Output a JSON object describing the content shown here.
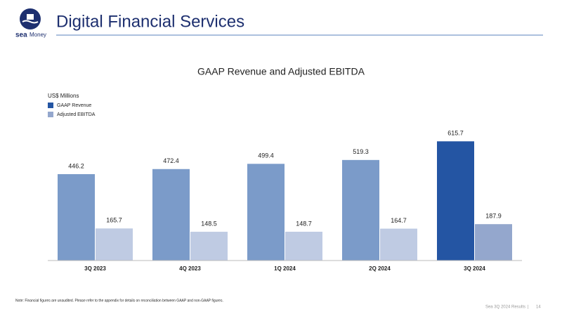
{
  "logo": {
    "brand": "sea",
    "product": "Money"
  },
  "header": {
    "title": "Digital Financial Services"
  },
  "chart_data": {
    "type": "bar",
    "title": "GAAP Revenue and Adjusted EBITDA",
    "unit_label": "US$ Millions",
    "categories": [
      "3Q 2023",
      "4Q 2023",
      "1Q 2024",
      "2Q 2024",
      "3Q 2024"
    ],
    "series": [
      {
        "name": "GAAP Revenue",
        "color": "#2455a3",
        "bar_colors": [
          "#7b9bc9",
          "#7b9bc9",
          "#7b9bc9",
          "#7b9bc9",
          "#2455a3"
        ],
        "values": [
          446.2,
          472.4,
          499.4,
          519.3,
          615.7
        ]
      },
      {
        "name": "Adjusted EBITDA",
        "color": "#94a7cd",
        "bar_colors": [
          "#bfcbe3",
          "#bfcbe3",
          "#bfcbe3",
          "#bfcbe3",
          "#94a7cd"
        ],
        "values": [
          165.7,
          148.5,
          148.7,
          164.7,
          187.9
        ]
      }
    ]
  },
  "footnote": "Note: Financial figures are unaudited. Please refer to the appendix for details on reconciliation between GAAP and non-GAAP figures.",
  "footer": {
    "text": "Sea 3Q 2024 Results",
    "page": "14"
  }
}
